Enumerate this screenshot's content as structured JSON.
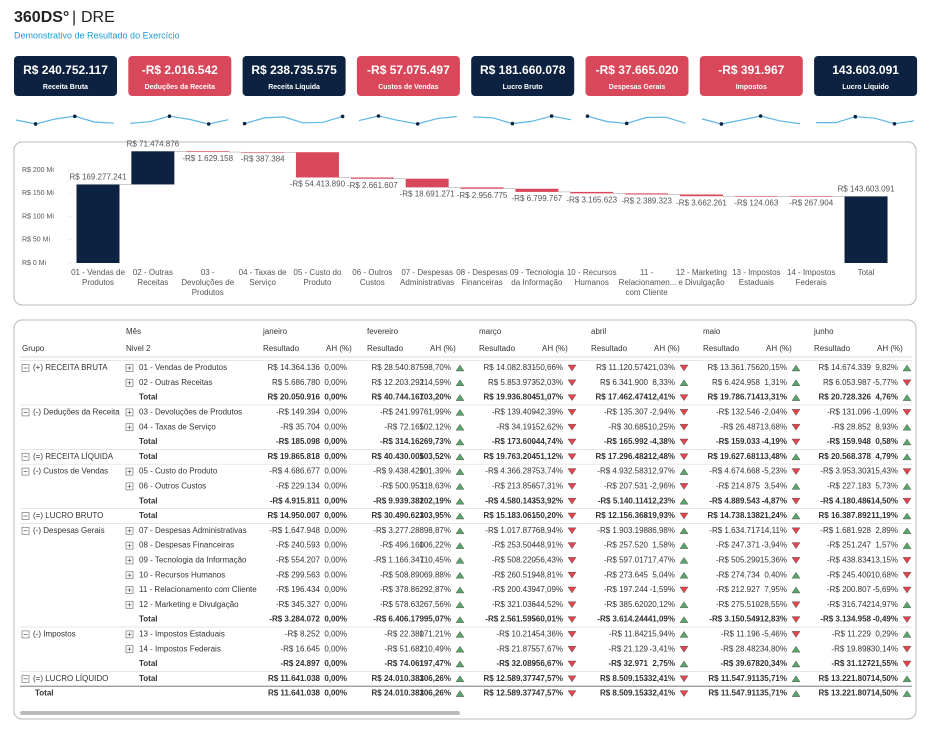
{
  "header": {
    "brand": "360DS°",
    "title": "DRE",
    "subtitle": "Demonstrativo de Resultado do Exercício"
  },
  "kpis": [
    {
      "value": "R$ 240.752.117",
      "label": "Receita Bruta",
      "color": "#0d2240"
    },
    {
      "value": "-R$ 2.016.542",
      "label": "Deduções da Receita",
      "color": "#d9475a"
    },
    {
      "value": "R$ 238.735.575",
      "label": "Receita Líquida",
      "color": "#0d2240"
    },
    {
      "value": "-R$ 57.075.497",
      "label": "Custos de Vendas",
      "color": "#d9475a"
    },
    {
      "value": "R$ 181.660.078",
      "label": "Lucro Bruto",
      "color": "#0d2240"
    },
    {
      "value": "-R$ 37.665.020",
      "label": "Despesas Gerais",
      "color": "#d9475a"
    },
    {
      "value": "-R$ 391.967",
      "label": "Impostos",
      "color": "#d9475a"
    },
    {
      "value": "143.603.091",
      "label": "Lucro Líquido",
      "color": "#0d2240"
    }
  ],
  "chart_data": {
    "type": "waterfall",
    "categories": [
      "01 - Vendas de Produtos",
      "02 - Outras Receitas",
      "03 - Devoluções de Produtos",
      "04 - Taxas de Serviço",
      "05 - Custo do Produto",
      "06 - Outros Custos",
      "07 - Despesas Administrativas",
      "08 - Despesas Financeiras",
      "09 - Tecnologia da Informação",
      "10 - Recursos Humanos",
      "11 - Relacionamen... com Cliente",
      "12 - Marketing e Divulgação",
      "13 - Impostos Estaduais",
      "14 - Impostos Federais"
    ],
    "values": [
      169.277241,
      71.474876,
      -1.629158,
      -0.387384,
      -54.41389,
      -2.661607,
      -18.691271,
      -2.956775,
      -6.799767,
      -3.165623,
      -2.389323,
      -3.662261,
      -0.124063,
      -0.267904
    ],
    "value_labels": [
      "R$ 169.277.241",
      "R$ 71.474.876",
      "-R$ 1.629.158",
      "-R$ 387.384",
      "-R$ 54.413.890",
      "-R$ 2.661.607",
      "-R$ 18.691.271",
      "-R$ 2.956.775",
      "-R$ 6.799.767",
      "-R$ 3.165.623",
      "-R$ 2.389.323",
      "-R$ 3.662.261",
      "-R$ 124.063",
      "-R$ 267.904"
    ],
    "total": {
      "category": "Total",
      "value": 143.603091,
      "value_label": "R$ 143.603.091"
    },
    "increase_color": "#0d2240",
    "decrease_color": "#d9475a",
    "total_color": "#0d2240",
    "ylim": [
      0,
      250
    ],
    "yticks": [
      {
        "value": 0,
        "label": "R$ 0 Mi"
      },
      {
        "value": 50,
        "label": "R$ 50 Mi"
      },
      {
        "value": 100,
        "label": "R$ 100 Mi"
      },
      {
        "value": 150,
        "label": "R$ 150 Mi"
      },
      {
        "value": 200,
        "label": "R$ 200 Mi"
      }
    ],
    "grid": false
  },
  "table": {
    "month_header": "Mês",
    "group_header": "Grupo",
    "level2_header": "Nivel 2",
    "months": [
      "janeiro",
      "fevereiro",
      "março",
      "abril",
      "maio",
      "junho"
    ],
    "result_header": "Resultado",
    "ah_header": "AH (%)",
    "rows": [
      {
        "group": "(+) RECEITA BRUTA",
        "level2": "01 - Vendas de Produtos",
        "cells": [
          [
            "R$ 14.364.136",
            "0,00%"
          ],
          [
            "R$ 28.540.875",
            "98,70%"
          ],
          [
            "R$ 14.082.831",
            "-50,66%"
          ],
          [
            "R$ 11.120.574",
            "-21,03%"
          ],
          [
            "R$ 13.361.756",
            "20,15%"
          ],
          [
            "R$ 14.674.339",
            "9,82%"
          ]
        ]
      },
      {
        "group": null,
        "level2": "02 - Outras Receitas",
        "cells": [
          [
            "R$ 5.686.780",
            "0,00%"
          ],
          [
            "R$ 12.203.292",
            "114,59%"
          ],
          [
            "R$ 5.853.973",
            "-52,03%"
          ],
          [
            "R$ 6.341.900",
            "8,33%"
          ],
          [
            "R$ 6.424.958",
            "1,31%"
          ],
          [
            "R$ 6.053.987",
            "-5,77%"
          ]
        ]
      },
      {
        "group": null,
        "level2": "Total",
        "cells": [
          [
            "R$ 20.050.916",
            "0,00%"
          ],
          [
            "R$ 40.744.167",
            "103,20%"
          ],
          [
            "R$ 19.936.804",
            "-51,07%"
          ],
          [
            "R$ 17.462.474",
            "-12,41%"
          ],
          [
            "R$ 19.786.714",
            "13,31%"
          ],
          [
            "R$ 20.728.326",
            "4,76%"
          ]
        ]
      },
      {
        "group": "(-) Deduções da Receita",
        "level2": "03 - Devoluções de Produtos",
        "cells": [
          [
            "-R$ 149.394",
            "0,00%"
          ],
          [
            "-R$ 241.997",
            "61,99%"
          ],
          [
            "-R$ 139.409",
            "-42,39%"
          ],
          [
            "-R$ 135.307",
            "-2,94%"
          ],
          [
            "-R$ 132.546",
            "-2,04%"
          ],
          [
            "-R$ 131.096",
            "-1,09%"
          ]
        ]
      },
      {
        "group": null,
        "level2": "04 - Taxas de Serviço",
        "cells": [
          [
            "-R$ 35.704",
            "0,00%"
          ],
          [
            "-R$ 72.165",
            "102,12%"
          ],
          [
            "-R$ 34.191",
            "-52,62%"
          ],
          [
            "-R$ 30.685",
            "-10,25%"
          ],
          [
            "-R$ 26.487",
            "-13,68%"
          ],
          [
            "-R$ 28.852",
            "8,93%"
          ]
        ]
      },
      {
        "group": null,
        "level2": "Total",
        "cells": [
          [
            "-R$ 185.098",
            "0,00%"
          ],
          [
            "-R$ 314.162",
            "69,73%"
          ],
          [
            "-R$ 173.600",
            "-44,74%"
          ],
          [
            "-R$ 165.992",
            "-4,38%"
          ],
          [
            "-R$ 159.033",
            "-4,19%"
          ],
          [
            "-R$ 159.948",
            "0,58%"
          ]
        ]
      },
      {
        "group": "(=) RECEITA LÍQUIDA",
        "level2": "Total",
        "cells": [
          [
            "R$ 19.865.818",
            "0,00%"
          ],
          [
            "R$ 40.430.005",
            "103,52%"
          ],
          [
            "R$ 19.763.204",
            "-51,12%"
          ],
          [
            "R$ 17.296.482",
            "-12,48%"
          ],
          [
            "R$ 19.627.681",
            "13,48%"
          ],
          [
            "R$ 20.568.378",
            "4,79%"
          ]
        ]
      },
      {
        "group": "(-) Custos de Vendas",
        "level2": "05 - Custo do Produto",
        "cells": [
          [
            "-R$ 4.686.677",
            "0,00%"
          ],
          [
            "-R$ 9.438.429",
            "101,39%"
          ],
          [
            "-R$ 4.366.287",
            "-53,74%"
          ],
          [
            "-R$ 4.932.583",
            "12,97%"
          ],
          [
            "-R$ 4.674.668",
            "-5,23%"
          ],
          [
            "-R$ 3.953.303",
            "-15,43%"
          ]
        ]
      },
      {
        "group": null,
        "level2": "06 - Outros Custos",
        "cells": [
          [
            "-R$ 229.134",
            "0,00%"
          ],
          [
            "-R$ 500.953",
            "118,63%"
          ],
          [
            "-R$ 213.856",
            "-57,31%"
          ],
          [
            "-R$ 207.531",
            "-2,96%"
          ],
          [
            "-R$ 214.875",
            "3,54%"
          ],
          [
            "-R$ 227.183",
            "5,73%"
          ]
        ]
      },
      {
        "group": null,
        "level2": "Total",
        "cells": [
          [
            "-R$ 4.915.811",
            "0,00%"
          ],
          [
            "-R$ 9.939.382",
            "102,19%"
          ],
          [
            "-R$ 4.580.143",
            "-53,92%"
          ],
          [
            "-R$ 5.140.114",
            "12,23%"
          ],
          [
            "-R$ 4.889.543",
            "-4,87%"
          ],
          [
            "-R$ 4.180.486",
            "-14,50%"
          ]
        ]
      },
      {
        "group": "(=) LUCRO BRUTO",
        "level2": "Total",
        "cells": [
          [
            "R$ 14.950.007",
            "0,00%"
          ],
          [
            "R$ 30.490.623",
            "103,95%"
          ],
          [
            "R$ 15.183.061",
            "-50,20%"
          ],
          [
            "R$ 12.156.368",
            "-19,93%"
          ],
          [
            "R$ 14.738.138",
            "21,24%"
          ],
          [
            "R$ 16.387.892",
            "11,19%"
          ]
        ]
      },
      {
        "group": "(-) Despesas Gerais",
        "level2": "07 - Despesas Administrativas",
        "cells": [
          [
            "-R$ 1.647.948",
            "0,00%"
          ],
          [
            "-R$ 3.277.288",
            "98,87%"
          ],
          [
            "-R$ 1.017.877",
            "-68,94%"
          ],
          [
            "-R$ 1.903.198",
            "86,98%"
          ],
          [
            "-R$ 1.634.717",
            "-14,11%"
          ],
          [
            "-R$ 1.681.928",
            "2,89%"
          ]
        ]
      },
      {
        "group": null,
        "level2": "08 - Despesas Financeiras",
        "cells": [
          [
            "-R$ 240.593",
            "0,00%"
          ],
          [
            "-R$ 496.160",
            "106,22%"
          ],
          [
            "-R$ 253.504",
            "-48,91%"
          ],
          [
            "-R$ 257.520",
            "1,58%"
          ],
          [
            "-R$ 247.371",
            "-3,94%"
          ],
          [
            "-R$ 251.247",
            "1,57%"
          ]
        ]
      },
      {
        "group": null,
        "level2": "09 - Tecnologia da Informação",
        "cells": [
          [
            "-R$ 554.207",
            "0,00%"
          ],
          [
            "-R$ 1.166.347",
            "110,45%"
          ],
          [
            "-R$ 508.220",
            "-56,43%"
          ],
          [
            "-R$ 597.017",
            "17,47%"
          ],
          [
            "-R$ 505.290",
            "-15,36%"
          ],
          [
            "-R$ 438.834",
            "-13,15%"
          ]
        ]
      },
      {
        "group": null,
        "level2": "10 - Recursos Humanos",
        "cells": [
          [
            "-R$ 299.563",
            "0,00%"
          ],
          [
            "-R$ 508.890",
            "69,88%"
          ],
          [
            "-R$ 260.519",
            "-48,81%"
          ],
          [
            "-R$ 273.645",
            "5,04%"
          ],
          [
            "-R$ 274.734",
            "0,40%"
          ],
          [
            "-R$ 245.400",
            "-10,68%"
          ]
        ]
      },
      {
        "group": null,
        "level2": "11 - Relacionamento com Cliente",
        "cells": [
          [
            "-R$ 196.434",
            "0,00%"
          ],
          [
            "-R$ 378.862",
            "92,87%"
          ],
          [
            "-R$ 200.439",
            "-47,09%"
          ],
          [
            "-R$ 197.244",
            "-1,59%"
          ],
          [
            "-R$ 212.927",
            "7,95%"
          ],
          [
            "-R$ 200.807",
            "-5,69%"
          ]
        ]
      },
      {
        "group": null,
        "level2": "12 - Marketing e Divulgação",
        "cells": [
          [
            "-R$ 345.327",
            "0,00%"
          ],
          [
            "-R$ 578.632",
            "67,56%"
          ],
          [
            "-R$ 321.036",
            "-44,52%"
          ],
          [
            "-R$ 385.620",
            "20,12%"
          ],
          [
            "-R$ 275.510",
            "-28,55%"
          ],
          [
            "-R$ 316.742",
            "14,97%"
          ]
        ]
      },
      {
        "group": null,
        "level2": "Total",
        "cells": [
          [
            "-R$ 3.284.072",
            "0,00%"
          ],
          [
            "-R$ 6.406.179",
            "95,07%"
          ],
          [
            "-R$ 2.561.595",
            "-60,01%"
          ],
          [
            "-R$ 3.614.244",
            "41,09%"
          ],
          [
            "-R$ 3.150.549",
            "-12,83%"
          ],
          [
            "-R$ 3.134.958",
            "-0,49%"
          ]
        ]
      },
      {
        "group": "(-) Impostos",
        "level2": "13 - Impostos Estaduais",
        "cells": [
          [
            "-R$ 8.252",
            "0,00%"
          ],
          [
            "-R$ 22.380",
            "171,21%"
          ],
          [
            "-R$ 10.214",
            "-54,36%"
          ],
          [
            "-R$ 11.842",
            "15,94%"
          ],
          [
            "-R$ 11.196",
            "-5,46%"
          ],
          [
            "-R$ 11.229",
            "0,29%"
          ]
        ]
      },
      {
        "group": null,
        "level2": "14 - Impostos Federais",
        "cells": [
          [
            "-R$ 16.645",
            "0,00%"
          ],
          [
            "-R$ 51.681",
            "210,49%"
          ],
          [
            "-R$ 21.875",
            "-57,67%"
          ],
          [
            "-R$ 21.129",
            "-3,41%"
          ],
          [
            "-R$ 28.482",
            "34,80%"
          ],
          [
            "-R$ 19.898",
            "-30,14%"
          ]
        ]
      },
      {
        "group": null,
        "level2": "Total",
        "cells": [
          [
            "-R$ 24.897",
            "0,00%"
          ],
          [
            "-R$ 74.061",
            "197,47%"
          ],
          [
            "-R$ 32.089",
            "-56,67%"
          ],
          [
            "-R$ 32.971",
            "2,75%"
          ],
          [
            "-R$ 39.678",
            "20,34%"
          ],
          [
            "-R$ 31.127",
            "-21,55%"
          ]
        ]
      },
      {
        "group": "(=) LUCRO LÍQUIDO",
        "level2": "Total",
        "cells": [
          [
            "R$ 11.641.038",
            "0,00%"
          ],
          [
            "R$ 24.010.383",
            "106,26%"
          ],
          [
            "R$ 12.589.377",
            "-47,57%"
          ],
          [
            "R$ 8.509.153",
            "-32,41%"
          ],
          [
            "R$ 11.547.911",
            "35,71%"
          ],
          [
            "R$ 13.221.807",
            "14,50%"
          ]
        ]
      },
      {
        "group": "Total",
        "level2": null,
        "cells": [
          [
            "R$ 11.641.038",
            "0,00%"
          ],
          [
            "R$ 24.010.383",
            "106,26%"
          ],
          [
            "R$ 12.589.377",
            "-47,57%"
          ],
          [
            "R$ 8.509.153",
            "-32,41%"
          ],
          [
            "R$ 11.547.911",
            "35,71%"
          ],
          [
            "R$ 13.221.807",
            "14,50%"
          ]
        ]
      }
    ]
  }
}
